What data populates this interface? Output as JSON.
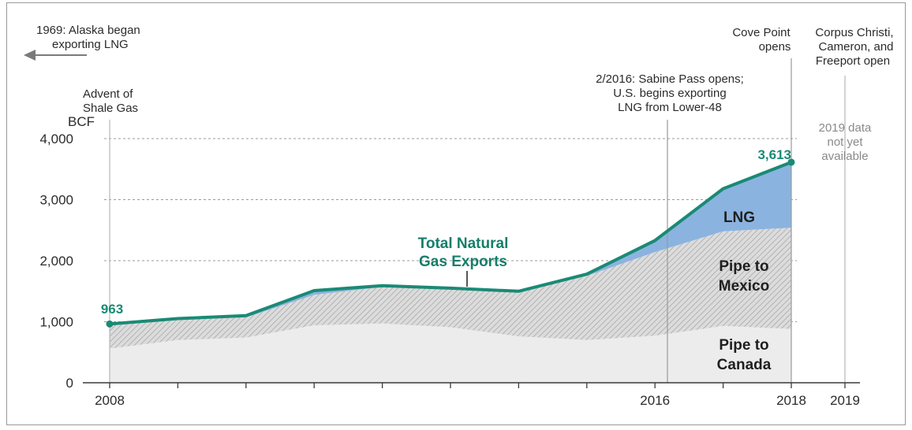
{
  "chart_data": {
    "type": "area",
    "ylabel": "BCF",
    "ylim": [
      0,
      4000
    ],
    "y_ticks": [
      "0",
      "1,000",
      "2,000",
      "3,000",
      "4,000"
    ],
    "y_tick_values": [
      0,
      1000,
      2000,
      3000,
      4000
    ],
    "x_tick_labels": [
      "2008",
      "2016",
      "2018",
      "2019"
    ],
    "x": [
      2008,
      2009,
      2010,
      2011,
      2012,
      2013,
      2014,
      2015,
      2016,
      2017,
      2018
    ],
    "series": [
      {
        "name": "Pipe to Canada",
        "values": [
          560,
          700,
          740,
          940,
          970,
          910,
          760,
          700,
          770,
          930,
          880
        ]
      },
      {
        "name": "Pipe to Mexico",
        "values": [
          380,
          340,
          330,
          500,
          600,
          640,
          730,
          1050,
          1370,
          1550,
          1660
        ]
      },
      {
        "name": "LNG",
        "values": [
          23,
          12,
          30,
          70,
          20,
          0,
          10,
          30,
          190,
          700,
          1073
        ]
      }
    ],
    "total": {
      "name": "Total Natural Gas Exports",
      "values": [
        963,
        1052,
        1100,
        1510,
        1590,
        1550,
        1500,
        1780,
        2330,
        3180,
        3613
      ]
    },
    "series_labels": [
      "LNG",
      "Pipe to Mexico",
      "Pipe to Canada"
    ],
    "total_label": [
      "Total Natural",
      "Gas Exports"
    ],
    "value_labels": {
      "first": "963",
      "last": "3,613"
    },
    "grid": "dashed horizontal",
    "annotations": {
      "alaska": [
        "1969: Alaska began",
        "exporting LNG"
      ],
      "shale": [
        "Advent of",
        "Shale Gas"
      ],
      "sabine": [
        "2/2016: Sabine Pass opens;",
        "U.S. begins exporting",
        "LNG from Lower-48"
      ],
      "cove": [
        "Cove Point",
        "opens"
      ],
      "corpus": [
        "Corpus Christi,",
        "Cameron, and",
        "Freeport open"
      ],
      "data_note": [
        "2019 data",
        "not yet",
        "available"
      ]
    },
    "colors": {
      "total_line": "#1a8a75",
      "lng_fill": "#8bb3df",
      "mexico_fill": "#c8c8c8",
      "canada_fill": "#ececec"
    }
  }
}
